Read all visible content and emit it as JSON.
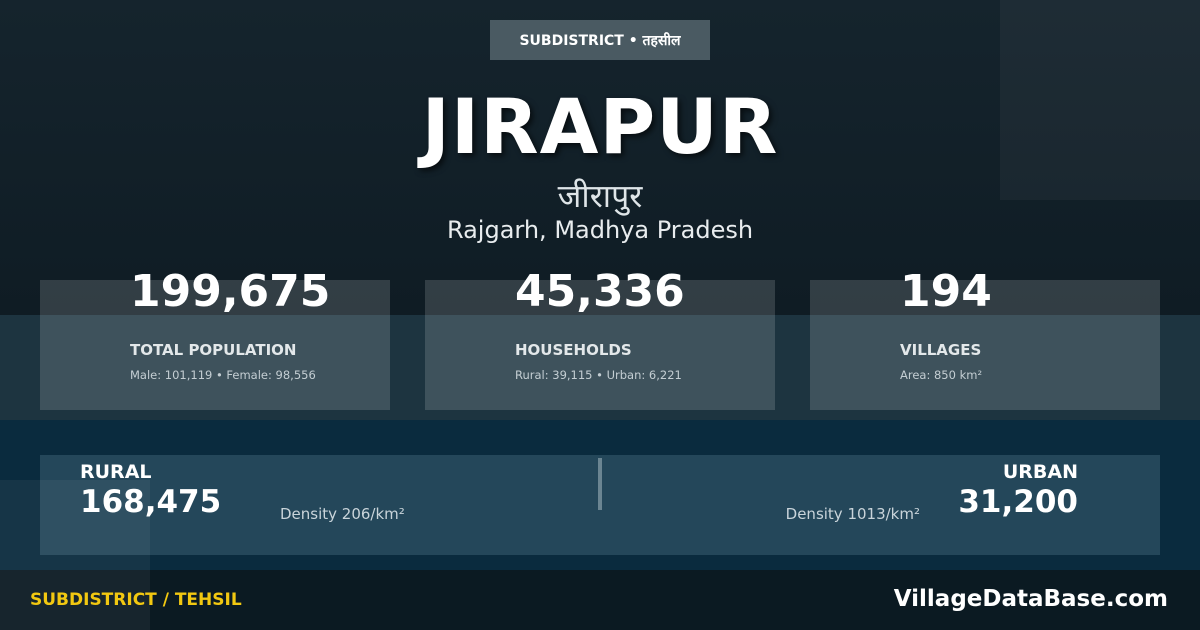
{
  "badge": "SUBDISTRICT • तहसील",
  "title": "JIRAPUR",
  "title_hindi": "जीरापुर",
  "location": "Rajgarh, Madhya Pradesh",
  "stats": [
    {
      "value": "199,675",
      "label": "TOTAL POPULATION",
      "sub": "Male: 101,119 • Female: 98,556"
    },
    {
      "value": "45,336",
      "label": "HOUSEHOLDS",
      "sub": "Rural: 39,115 • Urban: 6,221"
    },
    {
      "value": "194",
      "label": "VILLAGES",
      "sub": "Area: 850 km²"
    }
  ],
  "rural": {
    "label": "RURAL",
    "value": "168,475",
    "density": "Density 206/km²"
  },
  "urban": {
    "label": "URBAN",
    "value": "31,200",
    "density": "Density 1013/km²"
  },
  "footer": {
    "type": "SUBDISTRICT / TEHSIL",
    "brand": "VillageDataBase.com"
  },
  "colors": {
    "accent": "#f2c811",
    "panel": "#24475a"
  }
}
